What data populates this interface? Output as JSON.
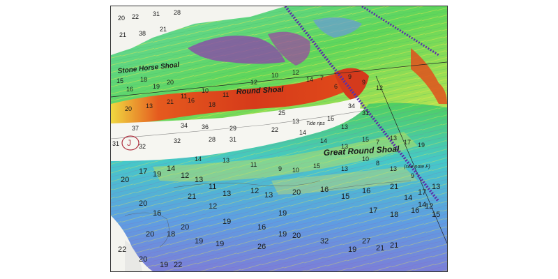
{
  "map": {
    "features": {
      "stone_horse_shoal": "Stone Horse Shoal",
      "round_shoal": "Round Shoal",
      "great_round_shoal": "Great Round Shoal",
      "see_note": "(see note F)",
      "tide_rips": "Tide rips"
    },
    "buoy": {
      "label": "J"
    },
    "colors": {
      "deep_red": "#e03a1c",
      "yellow": "#f5e84a",
      "green": "#5fd65a",
      "cyan": "#4ad2d8",
      "blue": "#5d8fe0",
      "purple": "#7a4a9a",
      "land_white": "#f4f4ef",
      "channel_line": "#5a2fa8"
    },
    "soundings": [
      {
        "v": "20",
        "big": false
      },
      {
        "v": "22",
        "big": false
      },
      {
        "v": "31",
        "big": false
      },
      {
        "v": "28",
        "big": false
      },
      {
        "v": "21",
        "big": false
      },
      {
        "v": "38",
        "big": false
      },
      {
        "v": "21",
        "big": false
      },
      {
        "v": "15",
        "big": false
      },
      {
        "v": "16",
        "big": false
      },
      {
        "v": "18",
        "big": false
      },
      {
        "v": "19",
        "big": false
      },
      {
        "v": "20",
        "big": false
      },
      {
        "v": "11",
        "big": false
      },
      {
        "v": "10",
        "big": false
      },
      {
        "v": "11",
        "big": false
      },
      {
        "v": "12",
        "big": false
      },
      {
        "v": "10",
        "big": false
      },
      {
        "v": "12",
        "big": false
      },
      {
        "v": "14",
        "big": false
      },
      {
        "v": "7",
        "big": false
      },
      {
        "v": "6",
        "big": false
      },
      {
        "v": "9",
        "big": false
      },
      {
        "v": "9",
        "big": false
      },
      {
        "v": "12",
        "big": false
      },
      {
        "v": "20",
        "big": false
      },
      {
        "v": "13",
        "big": false
      },
      {
        "v": "21",
        "big": false
      },
      {
        "v": "16",
        "big": false
      },
      {
        "v": "18",
        "big": false
      },
      {
        "v": "25",
        "big": false
      },
      {
        "v": "34",
        "big": false
      },
      {
        "v": "31",
        "big": false
      },
      {
        "v": "36",
        "big": false
      },
      {
        "v": "34",
        "big": false
      },
      {
        "v": "29",
        "big": false
      },
      {
        "v": "37",
        "big": false
      },
      {
        "v": "31",
        "big": false
      },
      {
        "v": "32",
        "big": false
      },
      {
        "v": "32",
        "big": false
      },
      {
        "v": "28",
        "big": false
      },
      {
        "v": "31",
        "big": false
      },
      {
        "v": "22",
        "big": false
      },
      {
        "v": "13",
        "big": false
      },
      {
        "v": "16",
        "big": false
      },
      {
        "v": "13",
        "big": false
      },
      {
        "v": "14",
        "big": false
      },
      {
        "v": "14",
        "big": false
      },
      {
        "v": "13",
        "big": false
      },
      {
        "v": "15",
        "big": false
      },
      {
        "v": "7",
        "big": false
      },
      {
        "v": "13",
        "big": false
      },
      {
        "v": "17",
        "big": false
      },
      {
        "v": "19",
        "big": false
      },
      {
        "v": "14",
        "big": false
      },
      {
        "v": "13",
        "big": false
      },
      {
        "v": "11",
        "big": false
      },
      {
        "v": "9",
        "big": false
      },
      {
        "v": "10",
        "big": false
      },
      {
        "v": "15",
        "big": false
      },
      {
        "v": "13",
        "big": false
      },
      {
        "v": "10",
        "big": false
      },
      {
        "v": "8",
        "big": false
      },
      {
        "v": "13",
        "big": false
      },
      {
        "v": "9",
        "big": false
      },
      {
        "v": "20",
        "big": true
      },
      {
        "v": "17",
        "big": true
      },
      {
        "v": "19",
        "big": true
      },
      {
        "v": "14",
        "big": true
      },
      {
        "v": "12",
        "big": true
      },
      {
        "v": "13",
        "big": true
      },
      {
        "v": "11",
        "big": true
      },
      {
        "v": "13",
        "big": true
      },
      {
        "v": "12",
        "big": true
      },
      {
        "v": "13",
        "big": true
      },
      {
        "v": "20",
        "big": true
      },
      {
        "v": "16",
        "big": true
      },
      {
        "v": "15",
        "big": true
      },
      {
        "v": "16",
        "big": true
      },
      {
        "v": "21",
        "big": true
      },
      {
        "v": "14",
        "big": true
      },
      {
        "v": "17",
        "big": true
      },
      {
        "v": "13",
        "big": true
      },
      {
        "v": "14",
        "big": true
      },
      {
        "v": "12",
        "big": true
      },
      {
        "v": "20",
        "big": true
      },
      {
        "v": "16",
        "big": true
      },
      {
        "v": "21",
        "big": true
      },
      {
        "v": "12",
        "big": true
      },
      {
        "v": "19",
        "big": true
      },
      {
        "v": "17",
        "big": true
      },
      {
        "v": "18",
        "big": true
      },
      {
        "v": "16",
        "big": true
      },
      {
        "v": "15",
        "big": true
      },
      {
        "v": "20",
        "big": true
      },
      {
        "v": "18",
        "big": true
      },
      {
        "v": "20",
        "big": true
      },
      {
        "v": "19",
        "big": true
      },
      {
        "v": "19",
        "big": true
      },
      {
        "v": "16",
        "big": true
      },
      {
        "v": "19",
        "big": true
      },
      {
        "v": "20",
        "big": true
      },
      {
        "v": "19",
        "big": true
      },
      {
        "v": "26",
        "big": true
      },
      {
        "v": "32",
        "big": true
      },
      {
        "v": "21",
        "big": true
      },
      {
        "v": "19",
        "big": true
      },
      {
        "v": "27",
        "big": true
      },
      {
        "v": "21",
        "big": true
      },
      {
        "v": "22",
        "big": true
      },
      {
        "v": "20",
        "big": true
      },
      {
        "v": "19",
        "big": true
      },
      {
        "v": "22",
        "big": true
      }
    ]
  }
}
